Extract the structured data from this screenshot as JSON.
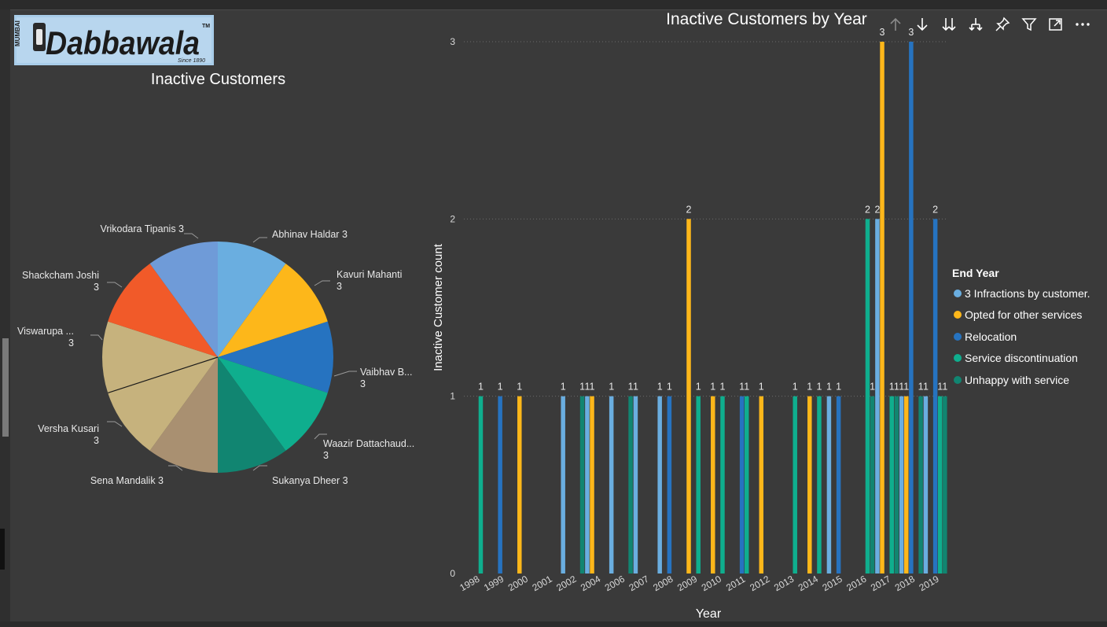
{
  "logo": {
    "brand_text": "Dabbawala",
    "side_text": "MUMBAI",
    "since_text": "Since 1890",
    "tm": "TM"
  },
  "toolbar": {
    "icons": [
      "drill-up-icon",
      "drill-down-icon",
      "expand-all-down-icon",
      "expand-next-level-icon",
      "pin-icon",
      "filter-icon",
      "focus-mode-icon",
      "more-options-icon"
    ]
  },
  "chart_data": [
    {
      "type": "pie",
      "title": "Inactive Customers",
      "slices": [
        {
          "label": "Abhinav Haldar",
          "value": 3,
          "display": "Abhinav Haldar 3",
          "color": "#6aaee0"
        },
        {
          "label": "Kavuri Mahanti",
          "value": 3,
          "display_lines": [
            "Kavuri Mahanti",
            "3"
          ],
          "color": "#fdb71a"
        },
        {
          "label": "Vaibhav B...",
          "value": 3,
          "display_lines": [
            "Vaibhav B...",
            "3"
          ],
          "color": "#2673c0"
        },
        {
          "label": "Waazir Dattachaud...",
          "value": 3,
          "display_lines": [
            "Waazir Dattachaud...",
            "3"
          ],
          "color": "#0fae8e"
        },
        {
          "label": "Sukanya Dheer",
          "value": 3,
          "display": "Sukanya Dheer 3",
          "color": "#118571"
        },
        {
          "label": "Sena Mandalik",
          "value": 3,
          "display": "Sena Mandalik 3",
          "color": "#a99071"
        },
        {
          "label": "Versha Kusari",
          "value": 3,
          "display_lines": [
            "Versha Kusari",
            "3"
          ],
          "color": "#c6b27d"
        },
        {
          "label": "Viswarupa ...",
          "value": 3,
          "display_lines": [
            "Viswarupa ...",
            "3"
          ],
          "color": "#c6b27d"
        },
        {
          "label": "Shackcham Joshi",
          "value": 3,
          "display_lines": [
            "Shackcham Joshi",
            "3"
          ],
          "color": "#f15a29"
        },
        {
          "label": "Vrikodara Tipanis",
          "value": 3,
          "display": "Vrikodara Tipanis 3",
          "color": "#6f9bd8"
        }
      ]
    },
    {
      "type": "bar",
      "title": "Inactive Customers by Year",
      "xlabel": "Year",
      "ylabel": "Inactive Customer count",
      "ylim": [
        0,
        3
      ],
      "yticks": [
        0,
        1,
        2,
        3
      ],
      "grid": true,
      "legend_title": "End Year",
      "legend_position": "right",
      "categories": [
        "1998",
        "1999",
        "2000",
        "2001",
        "2002",
        "2004",
        "2006",
        "2007",
        "2008",
        "2009",
        "2010",
        "2011",
        "2012",
        "2013",
        "2014",
        "2015",
        "2016",
        "2017",
        "2018",
        "2019"
      ],
      "series": [
        {
          "name": "3 Infractions by customer.",
          "color": "#6aaee0",
          "values": [
            0,
            0,
            0,
            0,
            1,
            1,
            1,
            1,
            1,
            0,
            0,
            0,
            0,
            0,
            0,
            1,
            0,
            2,
            1,
            1
          ]
        },
        {
          "name": "Opted for other services",
          "color": "#fdb71a",
          "values": [
            0,
            0,
            1,
            0,
            0,
            1,
            0,
            0,
            0,
            2,
            1,
            0,
            1,
            0,
            1,
            0,
            0,
            3,
            1,
            0
          ]
        },
        {
          "name": "Relocation",
          "color": "#2673c0",
          "values": [
            0,
            1,
            0,
            0,
            0,
            0,
            0,
            0,
            1,
            0,
            0,
            1,
            0,
            0,
            0,
            1,
            0,
            0,
            3,
            2
          ]
        },
        {
          "name": "Service discontinuation",
          "color": "#0fae8e",
          "values": [
            1,
            0,
            0,
            0,
            0,
            0,
            0,
            0,
            0,
            1,
            1,
            1,
            0,
            1,
            1,
            0,
            2,
            1,
            0,
            1
          ]
        },
        {
          "name": "Unhappy with service",
          "color": "#118571",
          "values": [
            0,
            0,
            0,
            0,
            1,
            0,
            1,
            0,
            0,
            0,
            0,
            0,
            0,
            0,
            0,
            0,
            1,
            1,
            1,
            1
          ]
        }
      ]
    }
  ]
}
